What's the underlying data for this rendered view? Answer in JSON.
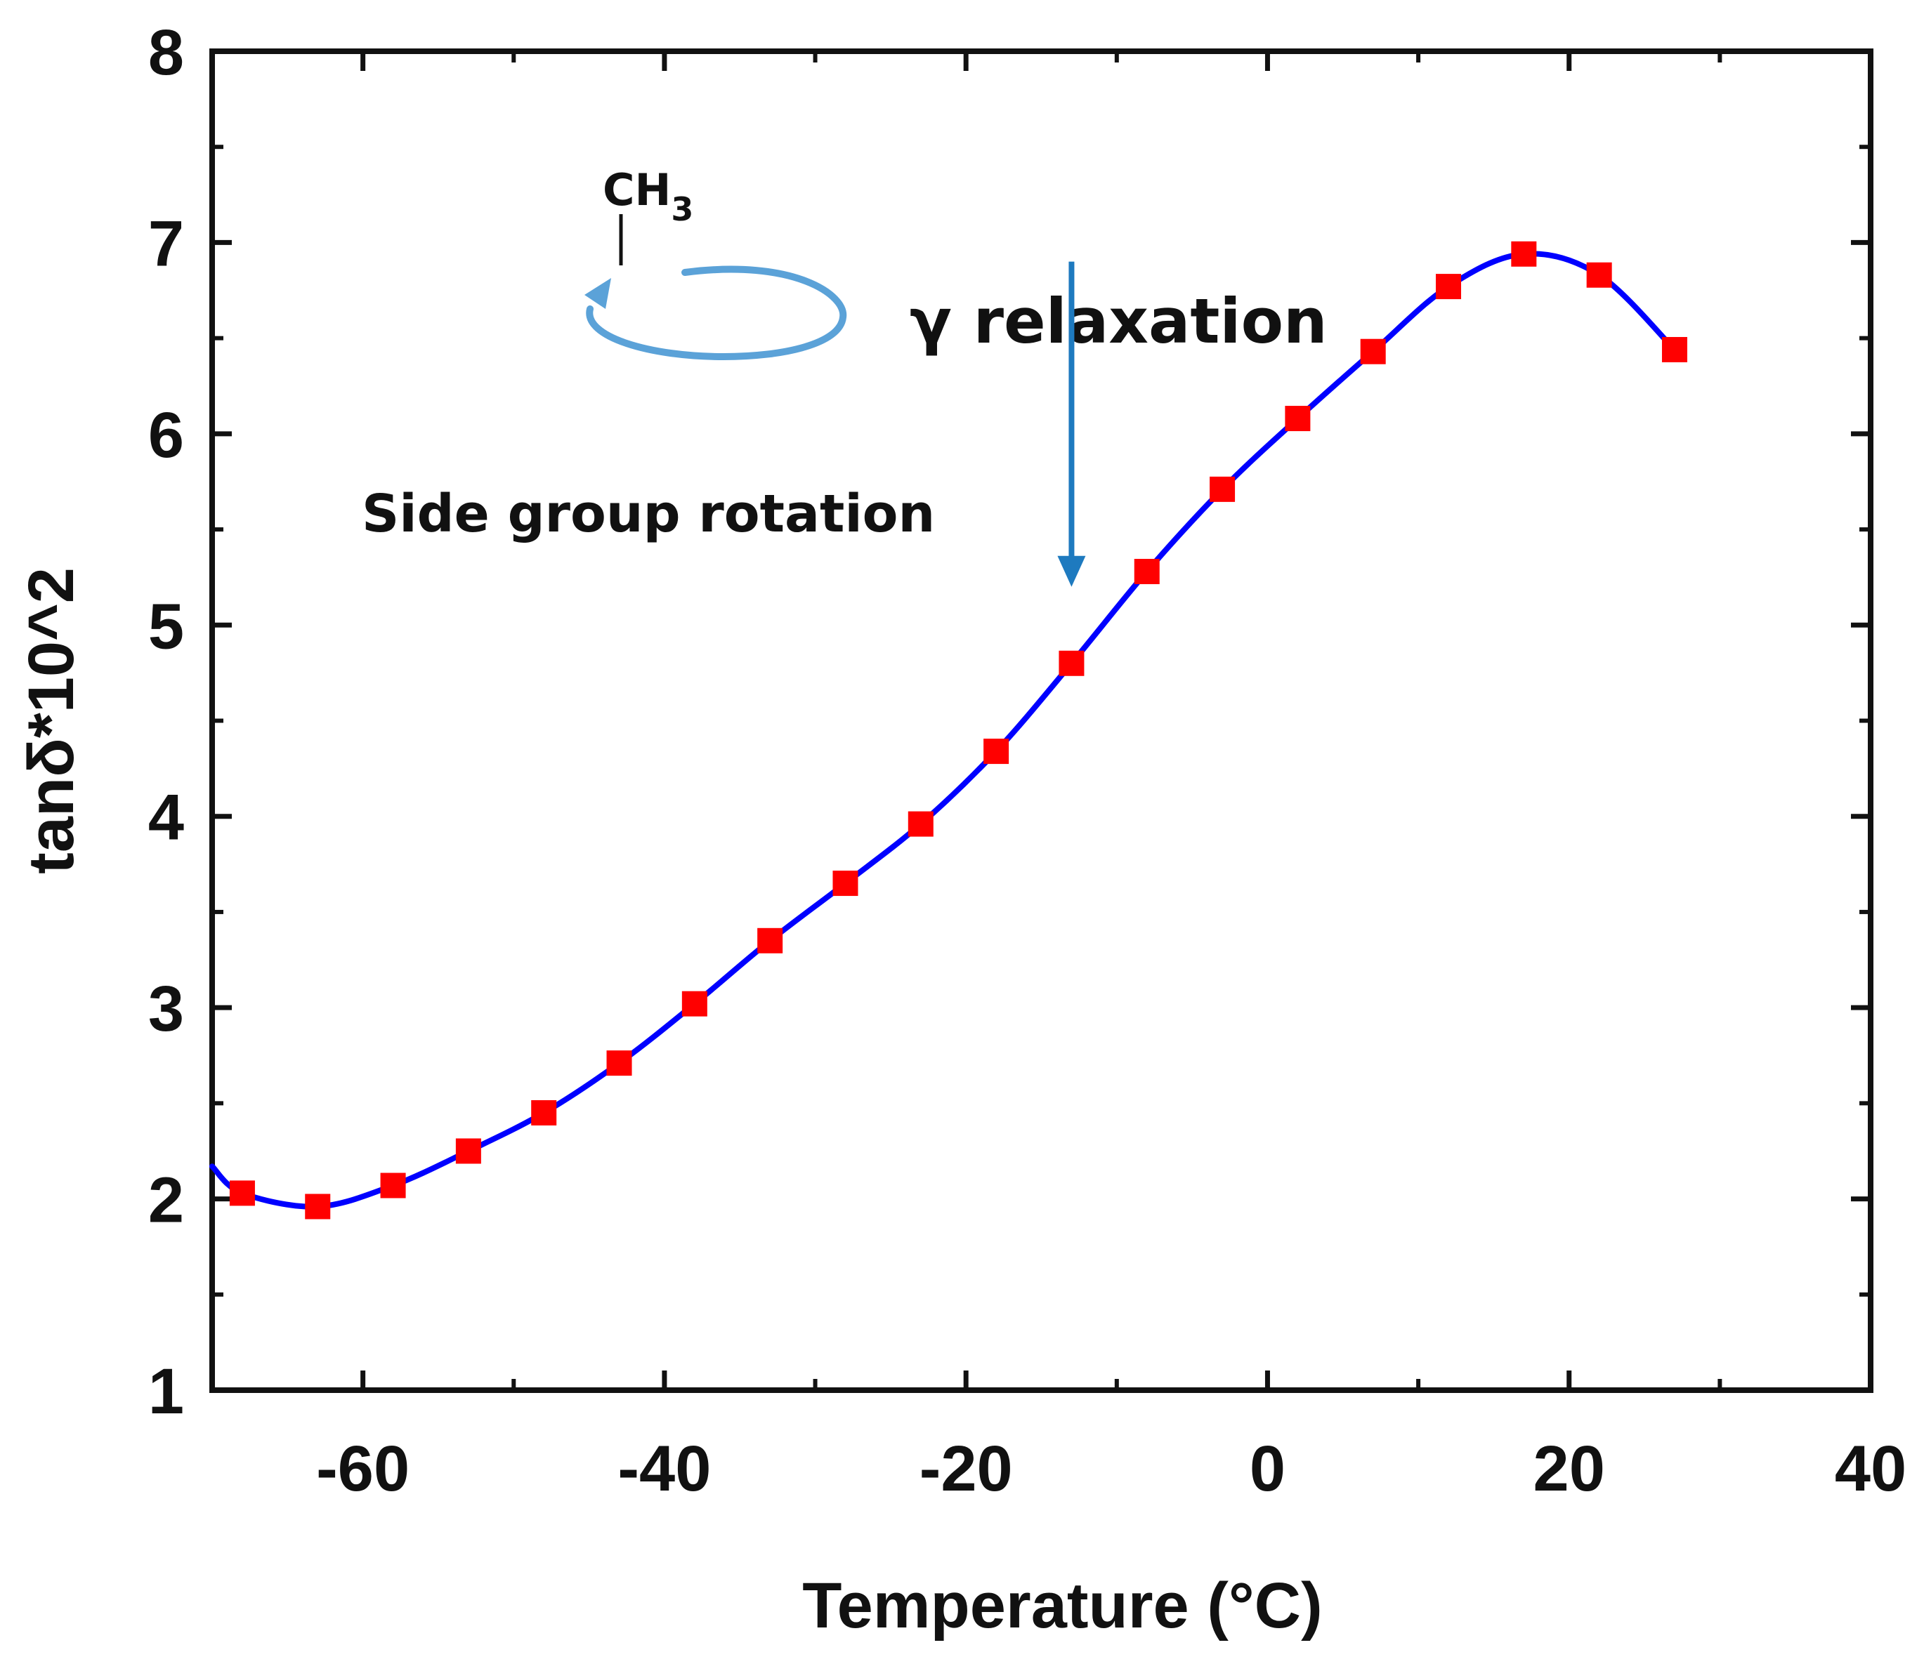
{
  "chart_data": {
    "type": "line",
    "title": "",
    "xlabel": "Temperature (°C)",
    "ylabel": "tanδ*10^2",
    "xlim": [
      -70,
      40
    ],
    "ylim": [
      1,
      8
    ],
    "x_ticks": [
      "-60",
      "-40",
      "-20",
      "0",
      "20",
      "40"
    ],
    "x_tick_values": [
      -60,
      -40,
      -20,
      0,
      20,
      40
    ],
    "y_ticks": [
      "1",
      "2",
      "3",
      "4",
      "5",
      "6",
      "7",
      "8"
    ],
    "y_tick_values": [
      1,
      2,
      3,
      4,
      5,
      6,
      7,
      8
    ],
    "grid": false,
    "line_start": {
      "x": -70,
      "y": 2.17
    },
    "series": [
      {
        "name": "tanδ",
        "x": [
          -68,
          -63,
          -58,
          -53,
          -48,
          -43,
          -38,
          -33,
          -28,
          -23,
          -18,
          -13,
          -8,
          -3,
          2,
          7,
          12,
          17,
          22,
          27
        ],
        "y": [
          2.03,
          1.96,
          2.07,
          2.25,
          2.45,
          2.71,
          3.02,
          3.35,
          3.65,
          3.96,
          4.34,
          4.8,
          5.28,
          5.71,
          6.08,
          6.43,
          6.77,
          6.94,
          6.83,
          6.44
        ]
      }
    ],
    "annotations": {
      "relaxation_label": "γ relaxation",
      "rotation_label": "Side group rotation",
      "group_formula": "CH",
      "group_subscript": "3",
      "arrow_x": -13,
      "arrow_y_from": 6.9,
      "arrow_y_to": 5.2
    },
    "colors": {
      "line": "#0000ff",
      "marker": "#ff0000",
      "axis": "#111111",
      "arrow": "#1e7abf",
      "rotation_arrow": "#5ba2d8"
    }
  }
}
